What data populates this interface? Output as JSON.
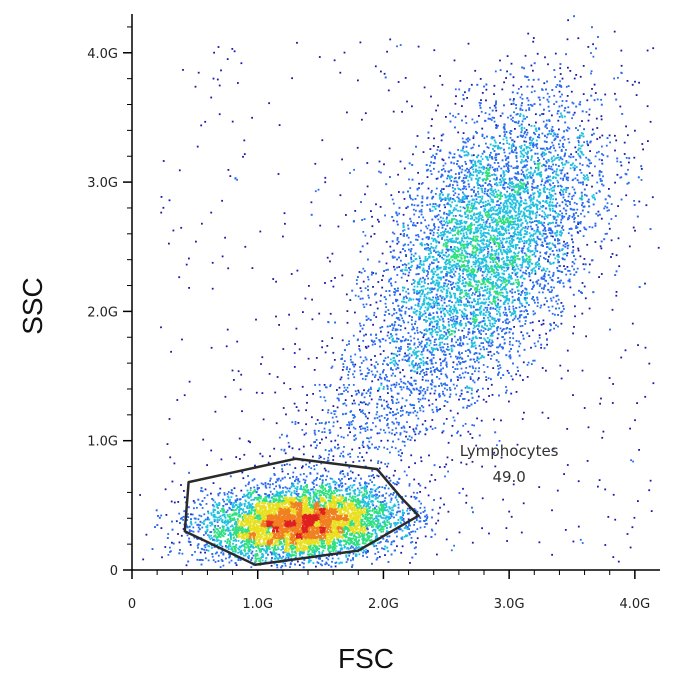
{
  "chart_data": {
    "type": "scatter",
    "subtype": "flow-cytometry density dot plot",
    "xlabel": "FSC",
    "ylabel": "SSC",
    "xlim": [
      0,
      4.2
    ],
    "ylim": [
      0,
      4.3
    ],
    "x_unit": "G",
    "y_unit": "G",
    "x_ticks": [
      {
        "value": 0,
        "label": "0"
      },
      {
        "value": 1,
        "label": "1.0G"
      },
      {
        "value": 2,
        "label": "2.0G"
      },
      {
        "value": 3,
        "label": "3.0G"
      },
      {
        "value": 4,
        "label": "4.0G"
      }
    ],
    "y_ticks": [
      {
        "value": 0,
        "label": "0"
      },
      {
        "value": 1,
        "label": "1.0G"
      },
      {
        "value": 2,
        "label": "2.0G"
      },
      {
        "value": 3,
        "label": "3.0G"
      },
      {
        "value": 4,
        "label": "4.0G"
      }
    ],
    "grid": false,
    "color_scale": [
      "#1a1aa8",
      "#2a6cf0",
      "#20c0e0",
      "#30e080",
      "#e8e020",
      "#f08020",
      "#e02020"
    ],
    "populations": [
      {
        "cx": 1.35,
        "cy": 0.36,
        "sx": 0.38,
        "sy": 0.14,
        "corr": 0.15,
        "fraction": 0.49
      },
      {
        "cx": 2.85,
        "cy": 2.55,
        "sx": 0.42,
        "sy": 0.55,
        "corr": 0.45,
        "fraction": 0.43
      },
      {
        "cx": 2.1,
        "cy": 1.4,
        "sx": 0.55,
        "sy": 0.6,
        "corr": 0.75,
        "fraction": 0.08
      }
    ],
    "gate": {
      "name": "Lymphocytes",
      "value": "49.0",
      "polygon": [
        [
          0.45,
          0.68
        ],
        [
          1.3,
          0.86
        ],
        [
          1.95,
          0.78
        ],
        [
          2.15,
          0.55
        ],
        [
          2.28,
          0.42
        ],
        [
          1.8,
          0.15
        ],
        [
          0.98,
          0.04
        ],
        [
          0.42,
          0.3
        ]
      ]
    }
  }
}
